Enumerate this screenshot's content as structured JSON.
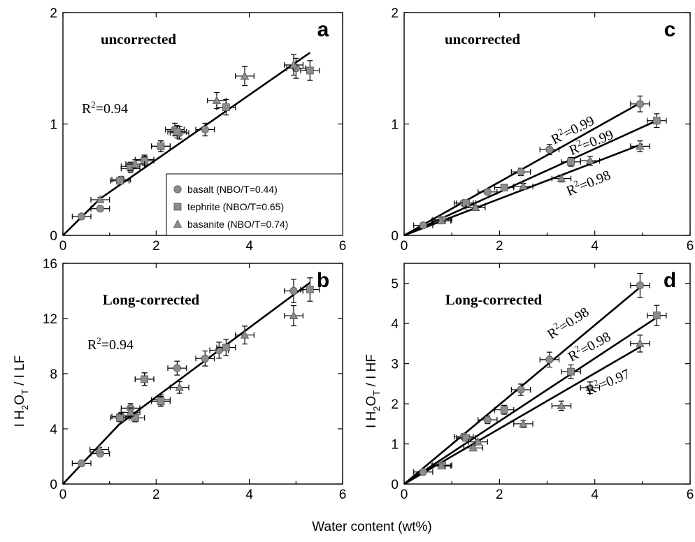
{
  "figure": {
    "xlabel": "Water content (wt%)",
    "ylabel_left": [
      "I H",
      "2",
      "O",
      "T",
      " / I LF"
    ],
    "ylabel_right": [
      "I H",
      "2",
      "O",
      "T",
      " / I HF"
    ]
  },
  "legend": {
    "items": [
      {
        "marker": "circle",
        "label": "basalt (NBO/T=0.44)"
      },
      {
        "marker": "square",
        "label": "tephrite (NBO/T=0.65)"
      },
      {
        "marker": "triangle",
        "label": "basanite (NBO/T=0.74)"
      }
    ]
  },
  "chart_data": [
    {
      "panel": "a",
      "type": "scatter",
      "title": "uncorrected",
      "xlim": [
        0,
        6
      ],
      "ylim": [
        0,
        2
      ],
      "xticks": [
        0,
        2,
        4,
        6
      ],
      "yticks": [
        0,
        1,
        2
      ],
      "annotations": [
        {
          "text": "R",
          "sup": "2",
          "rest": "=0.94"
        }
      ],
      "series": [
        {
          "name": "basalt (NBO/T=0.44)",
          "marker": "circle",
          "points": [
            [
              0.4,
              0.17
            ],
            [
              0.8,
              0.24
            ],
            [
              1.25,
              0.5
            ],
            [
              1.45,
              0.6
            ],
            [
              1.75,
              0.68
            ],
            [
              2.1,
              0.8
            ],
            [
              2.4,
              0.95
            ],
            [
              2.5,
              0.92
            ],
            [
              3.05,
              0.95
            ],
            [
              5.0,
              1.5
            ]
          ]
        },
        {
          "name": "tephrite (NBO/T=0.65)",
          "marker": "square",
          "points": [
            [
              1.22,
              0.49
            ],
            [
              1.45,
              0.62
            ],
            [
              1.75,
              0.67
            ],
            [
              2.1,
              0.8
            ],
            [
              2.45,
              0.93
            ],
            [
              3.5,
              1.15
            ],
            [
              5.3,
              1.48
            ]
          ]
        },
        {
          "name": "basanite (NBO/T=0.74)",
          "marker": "triangle",
          "points": [
            [
              0.8,
              0.32
            ],
            [
              1.55,
              0.64
            ],
            [
              3.3,
              1.21
            ],
            [
              3.9,
              1.43
            ],
            [
              4.95,
              1.53
            ]
          ]
        }
      ],
      "fits": [
        [
          [
            0,
            0
          ],
          [
            0.8,
            0.33
          ],
          [
            5.3,
            1.64
          ]
        ]
      ]
    },
    {
      "panel": "b",
      "type": "scatter",
      "title": "Long-corrected",
      "xlim": [
        0,
        6
      ],
      "ylim": [
        0,
        16
      ],
      "xticks": [
        0,
        2,
        4,
        6
      ],
      "yticks": [
        0,
        4,
        8,
        12,
        16
      ],
      "annotations": [
        {
          "text": "R",
          "sup": "2",
          "rest": "=0.94"
        }
      ],
      "series": [
        {
          "name": "basalt (NBO/T=0.44)",
          "marker": "circle",
          "points": [
            [
              0.4,
              1.5
            ],
            [
              0.8,
              2.2
            ],
            [
              1.25,
              4.9
            ],
            [
              1.45,
              5.5
            ],
            [
              1.75,
              7.6
            ],
            [
              2.1,
              6.1
            ],
            [
              2.45,
              8.4
            ],
            [
              3.05,
              9.1
            ],
            [
              3.35,
              9.7
            ],
            [
              4.95,
              14.0
            ]
          ]
        },
        {
          "name": "tephrite (NBO/T=0.65)",
          "marker": "square",
          "points": [
            [
              1.22,
              4.8
            ],
            [
              1.55,
              4.8
            ],
            [
              1.75,
              7.6
            ],
            [
              2.1,
              6.0
            ],
            [
              3.5,
              9.9
            ],
            [
              5.3,
              14.1
            ]
          ]
        },
        {
          "name": "basanite (NBO/T=0.74)",
          "marker": "triangle",
          "points": [
            [
              0.78,
              2.5
            ],
            [
              1.45,
              5.2
            ],
            [
              2.5,
              7.0
            ],
            [
              3.9,
              10.8
            ],
            [
              4.95,
              12.2
            ]
          ]
        }
      ],
      "fits": [
        [
          [
            0,
            0
          ],
          [
            1.2,
            4.3
          ],
          [
            5.3,
            14.6
          ]
        ]
      ]
    },
    {
      "panel": "c",
      "type": "scatter",
      "title": "uncorrected",
      "xlim": [
        0,
        6
      ],
      "ylim": [
        0,
        2
      ],
      "xticks": [
        0,
        2,
        4,
        6
      ],
      "yticks": [
        0,
        1,
        2
      ],
      "annotations": [
        {
          "text": "R",
          "sup": "2",
          "rest": "=0.99"
        },
        {
          "text": "R",
          "sup": "2",
          "rest": "=0.99"
        },
        {
          "text": "R",
          "sup": "2",
          "rest": "=0.98"
        }
      ],
      "series": [
        {
          "name": "basalt (NBO/T=0.44)",
          "marker": "circle",
          "points": [
            [
              0.4,
              0.09
            ],
            [
              1.25,
              0.29
            ],
            [
              1.75,
              0.39
            ],
            [
              2.45,
              0.57
            ],
            [
              3.05,
              0.77
            ],
            [
              4.95,
              1.18
            ]
          ]
        },
        {
          "name": "tephrite (NBO/T=0.65)",
          "marker": "square",
          "points": [
            [
              0.8,
              0.14
            ],
            [
              1.3,
              0.29
            ],
            [
              2.1,
              0.43
            ],
            [
              3.5,
              0.66
            ],
            [
              5.3,
              1.03
            ]
          ]
        },
        {
          "name": "basanite (NBO/T=0.74)",
          "marker": "triangle",
          "points": [
            [
              0.78,
              0.13
            ],
            [
              1.5,
              0.25
            ],
            [
              2.5,
              0.44
            ],
            [
              3.3,
              0.51
            ],
            [
              3.9,
              0.67
            ],
            [
              4.95,
              0.8
            ]
          ]
        }
      ],
      "fits": [
        [
          [
            0,
            0
          ],
          [
            5.0,
            1.2
          ]
        ],
        [
          [
            0,
            0
          ],
          [
            5.3,
            1.03
          ]
        ],
        [
          [
            0,
            0
          ],
          [
            5.0,
            0.82
          ]
        ]
      ]
    },
    {
      "panel": "d",
      "type": "scatter",
      "title": "Long-corrected",
      "xlim": [
        0,
        6
      ],
      "ylim": [
        0,
        5.5
      ],
      "xticks": [
        0,
        2,
        4,
        6
      ],
      "yticks": [
        0,
        1,
        2,
        3,
        4,
        5
      ],
      "annotations": [
        {
          "text": "R",
          "sup": "2",
          "rest": "=0.98"
        },
        {
          "text": "R",
          "sup": "2",
          "rest": "=0.98"
        },
        {
          "text": "R",
          "sup": "2",
          "rest": "=0.97"
        }
      ],
      "series": [
        {
          "name": "basalt (NBO/T=0.44)",
          "marker": "circle",
          "points": [
            [
              0.4,
              0.3
            ],
            [
              1.25,
              1.18
            ],
            [
              1.75,
              1.6
            ],
            [
              2.45,
              2.35
            ],
            [
              3.05,
              3.1
            ],
            [
              4.95,
              4.95
            ]
          ]
        },
        {
          "name": "tephrite (NBO/T=0.65)",
          "marker": "square",
          "points": [
            [
              0.8,
              0.47
            ],
            [
              1.3,
              1.15
            ],
            [
              2.1,
              1.85
            ],
            [
              3.5,
              2.8
            ],
            [
              5.3,
              4.2
            ]
          ]
        },
        {
          "name": "basanite (NBO/T=0.74)",
          "marker": "triangle",
          "points": [
            [
              0.78,
              0.45
            ],
            [
              1.45,
              0.9
            ],
            [
              1.55,
              1.05
            ],
            [
              2.5,
              1.5
            ],
            [
              3.3,
              1.95
            ],
            [
              3.9,
              2.4
            ],
            [
              4.95,
              3.5
            ]
          ]
        }
      ],
      "fits": [
        [
          [
            0,
            0
          ],
          [
            5.0,
            4.95
          ]
        ],
        [
          [
            0,
            0
          ],
          [
            5.3,
            4.15
          ]
        ],
        [
          [
            0,
            0
          ],
          [
            5.0,
            3.45
          ]
        ]
      ]
    }
  ]
}
